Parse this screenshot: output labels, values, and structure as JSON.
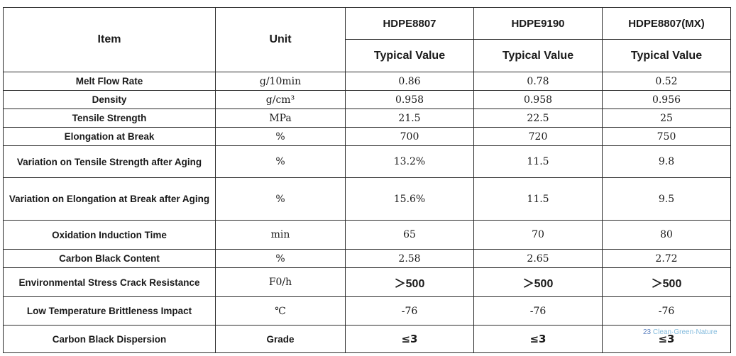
{
  "header": {
    "item_label": "Item",
    "unit_label": "Unit",
    "grades": [
      "HDPE8807",
      "HDPE9190",
      "HDPE8807(MX)"
    ],
    "typical_label": "Typical Value"
  },
  "rows": [
    {
      "item": "Melt Flow Rate",
      "unit": "g/10min",
      "values": [
        "0.86",
        "0.78",
        "0.52"
      ]
    },
    {
      "item": "Density",
      "unit": "g/cm³",
      "values": [
        "0.958",
        "0.958",
        "0.956"
      ]
    },
    {
      "item": "Tensile Strength",
      "unit": "MPa",
      "values": [
        "21.5",
        "22.5",
        "25"
      ]
    },
    {
      "item": "Elongation at Break",
      "unit": "%",
      "values": [
        "700",
        "720",
        "750"
      ]
    },
    {
      "item": "Variation on Tensile Strength after Aging",
      "unit": "%",
      "values": [
        "13.2%",
        "11.5",
        "9.8"
      ]
    },
    {
      "item": "Variation on Elongation at Break after Aging",
      "unit": "%",
      "values": [
        "15.6%",
        "11.5",
        "9.5"
      ]
    },
    {
      "item": "Oxidation Induction Time",
      "unit": "min",
      "values": [
        "65",
        "70",
        "80"
      ]
    },
    {
      "item": "Carbon Black Content",
      "unit": "%",
      "values": [
        "2.58",
        "2.65",
        "2.72"
      ]
    },
    {
      "item": "Environmental Stress Crack Resistance",
      "unit": "F0/h",
      "values": [
        "＞500",
        "＞500",
        "＞500"
      ]
    },
    {
      "item": "Low Temperature Brittleness Impact",
      "unit": "℃",
      "values": [
        "-76",
        "-76",
        "-76"
      ]
    },
    {
      "item": "Carbon Black Dispersion",
      "unit": "Grade",
      "values": [
        "≤3",
        "≤3",
        "≤3"
      ]
    }
  ],
  "watermark": {
    "page_number": "23",
    "brand": "Clean·Green·Nature"
  }
}
